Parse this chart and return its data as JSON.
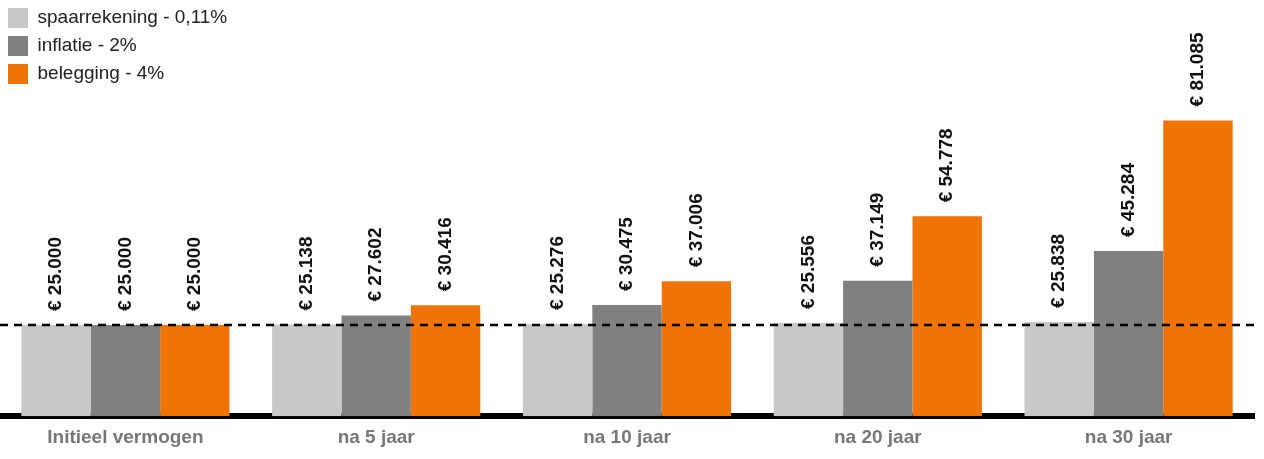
{
  "chart_data": {
    "type": "bar",
    "categories": [
      "Initieel vermogen",
      "na 5 jaar",
      "na 10 jaar",
      "na 20 jaar",
      "na 30 jaar"
    ],
    "series": [
      {
        "name": "spaarrekening - 0,11%",
        "color": "#c8c8c8",
        "values": [
          25000,
          25138,
          25276,
          25556,
          25838
        ],
        "value_labels": [
          "€ 25.000",
          "€ 25.138",
          "€ 25.276",
          "€ 25.556",
          "€ 25.838"
        ]
      },
      {
        "name": "inflatie - 2%",
        "color": "#808080",
        "values": [
          25000,
          27602,
          30475,
          37149,
          45284
        ],
        "value_labels": [
          "€ 25.000",
          "€ 27.602",
          "€ 30.475",
          "€ 37.149",
          "€ 45.284"
        ]
      },
      {
        "name": "belegging - 4%",
        "color": "#f07308",
        "values": [
          25000,
          30416,
          37006,
          54778,
          81085
        ],
        "value_labels": [
          "€ 25.000",
          "€ 30.416",
          "€ 37.006",
          "€ 54.778",
          "€ 81.085"
        ]
      }
    ],
    "ref_lines": [
      {
        "axis": "y",
        "value": 25000,
        "color": "#000000",
        "line_style": "dashed"
      }
    ],
    "legend": "top left",
    "grid": false,
    "tick_labels": "x"
  }
}
